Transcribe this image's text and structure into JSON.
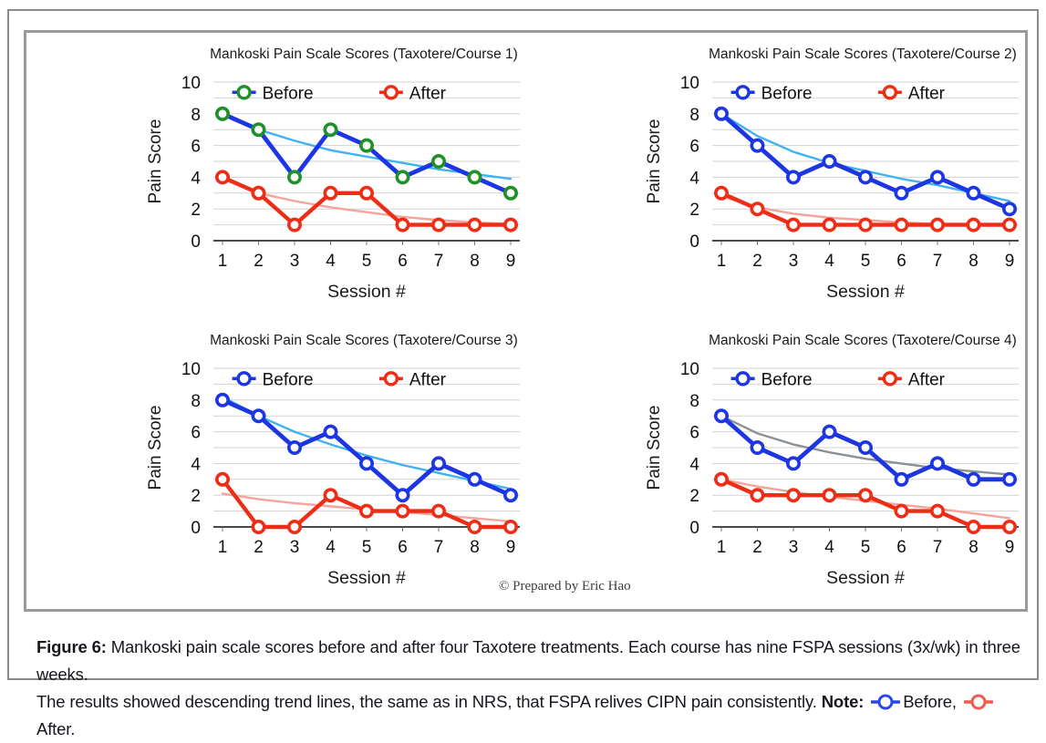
{
  "figure": {
    "caption_label": "Figure 6:",
    "caption_line1": "Mankoski pain scale scores before and after four Taxotere treatments. Each course has nine FSPA sessions (3x/wk) in three weeks.",
    "caption_line2": "The results showed descending trend lines, the same as in NRS, that FSPA relives CIPN pain consistently.",
    "note_label": "Note:",
    "note_before_label": "Before,",
    "note_after_label": "After.",
    "note_before_color": "#2b46ea",
    "note_after_color": "#f3584c",
    "credit": "© Prepared by Eric Hao"
  },
  "style": {
    "grid_color": "#d2d2d2",
    "axis_color": "#4a4a4a",
    "tick_text_color": "#111111",
    "title_color": "#1a1a1a",
    "marker_fill": "#ffffff"
  },
  "chart_data": [
    {
      "type": "line",
      "title": "Mankoski Pain Scale Scores (Taxotere/Course 1)",
      "xlabel": "Session  #",
      "ylabel": "Pain Score",
      "x": [
        1,
        2,
        3,
        4,
        5,
        6,
        7,
        8,
        9
      ],
      "ylim": [
        0,
        10
      ],
      "yticks": [
        0,
        2,
        4,
        6,
        8,
        10
      ],
      "grid": "horizontal-every-1",
      "legend_position": "inside-top",
      "series": [
        {
          "name": "Before",
          "values": [
            8,
            7,
            4,
            7,
            6,
            4,
            5,
            4,
            3
          ],
          "line_color": "#1d36e4",
          "marker_color": "#1f9128",
          "trend": {
            "color": "#3fb3f2",
            "values": [
              8.1,
              7.0,
              6.3,
              5.7,
              5.3,
              4.9,
              4.5,
              4.2,
              3.9
            ]
          }
        },
        {
          "name": "After",
          "values": [
            4,
            3,
            1,
            3,
            3,
            1,
            1,
            1,
            1
          ],
          "line_color": "#ee2d17",
          "marker_color": "#ee2d17",
          "trend": {
            "color": "#f5a49b",
            "values": [
              3.9,
              3.0,
              2.5,
              2.1,
              1.8,
              1.5,
              1.3,
              1.15,
              1.05
            ]
          }
        }
      ]
    },
    {
      "type": "line",
      "title": "Mankoski Pain Scale Scores (Taxotere/Course 2)",
      "xlabel": "Session  #",
      "ylabel": "Pain Score",
      "x": [
        1,
        2,
        3,
        4,
        5,
        6,
        7,
        8,
        9
      ],
      "ylim": [
        0,
        10
      ],
      "yticks": [
        0,
        2,
        4,
        6,
        8,
        10
      ],
      "grid": "horizontal-every-1",
      "legend_position": "inside-top",
      "series": [
        {
          "name": "Before",
          "values": [
            8,
            6,
            4,
            5,
            4,
            3,
            4,
            3,
            2
          ],
          "line_color": "#1d36e4",
          "marker_color": "#1d36e4",
          "trend": {
            "color": "#3fb3f2",
            "values": [
              8.0,
              6.6,
              5.6,
              4.9,
              4.4,
              3.9,
              3.5,
              3.0,
              2.5
            ]
          }
        },
        {
          "name": "After",
          "values": [
            3,
            2,
            1,
            1,
            1,
            1,
            1,
            1,
            1
          ],
          "line_color": "#ee2d17",
          "marker_color": "#ee2d17",
          "trend": {
            "color": "#f5a49b",
            "values": [
              2.8,
              2.1,
              1.7,
              1.45,
              1.3,
              1.15,
              1.05,
              1.0,
              0.95
            ]
          }
        }
      ]
    },
    {
      "type": "line",
      "title": "Mankoski Pain Scale Scores (Taxotere/Course 3)",
      "xlabel": "Session  #",
      "ylabel": "Pain Score",
      "x": [
        1,
        2,
        3,
        4,
        5,
        6,
        7,
        8,
        9
      ],
      "ylim": [
        0,
        10
      ],
      "yticks": [
        0,
        2,
        4,
        6,
        8,
        10
      ],
      "grid": "horizontal-every-1",
      "legend_position": "inside-top",
      "series": [
        {
          "name": "Before",
          "values": [
            8,
            7,
            5,
            6,
            4,
            2,
            4,
            3,
            2
          ],
          "line_color": "#1d36e4",
          "marker_color": "#1d36e4",
          "trend": {
            "color": "#3fb3f2",
            "values": [
              8.2,
              7.0,
              6.0,
              5.2,
              4.5,
              3.9,
              3.4,
              2.9,
              2.4
            ]
          }
        },
        {
          "name": "After",
          "values": [
            3,
            0,
            0,
            2,
            1,
            1,
            1,
            0,
            0
          ],
          "line_color": "#ee2d17",
          "marker_color": "#ee2d17",
          "trend": {
            "color": "#f5a49b",
            "values": [
              2.1,
              1.75,
              1.5,
              1.3,
              1.1,
              0.95,
              0.75,
              0.55,
              0.35
            ]
          }
        }
      ]
    },
    {
      "type": "line",
      "title": "Mankoski Pain Scale Scores (Taxotere/Course 4)",
      "xlabel": "Session  #",
      "ylabel": "Pain Score",
      "x": [
        1,
        2,
        3,
        4,
        5,
        6,
        7,
        8,
        9
      ],
      "ylim": [
        0,
        10
      ],
      "yticks": [
        0,
        2,
        4,
        6,
        8,
        10
      ],
      "grid": "horizontal-every-1",
      "legend_position": "inside-top",
      "series": [
        {
          "name": "Before",
          "values": [
            7,
            5,
            4,
            6,
            5,
            3,
            4,
            3,
            3
          ],
          "line_color": "#1d36e4",
          "marker_color": "#1d36e4",
          "trend": {
            "color": "#8b9095",
            "values": [
              7.0,
              5.9,
              5.2,
              4.7,
              4.3,
              4.0,
              3.7,
              3.5,
              3.3
            ]
          }
        },
        {
          "name": "After",
          "values": [
            3,
            2,
            2,
            2,
            2,
            1,
            1,
            0,
            0
          ],
          "line_color": "#ee2d17",
          "marker_color": "#ee2d17",
          "trend": {
            "color": "#f5a49b",
            "values": [
              3.0,
              2.55,
              2.2,
              1.9,
              1.65,
              1.4,
              1.15,
              0.85,
              0.55
            ]
          }
        }
      ]
    }
  ]
}
